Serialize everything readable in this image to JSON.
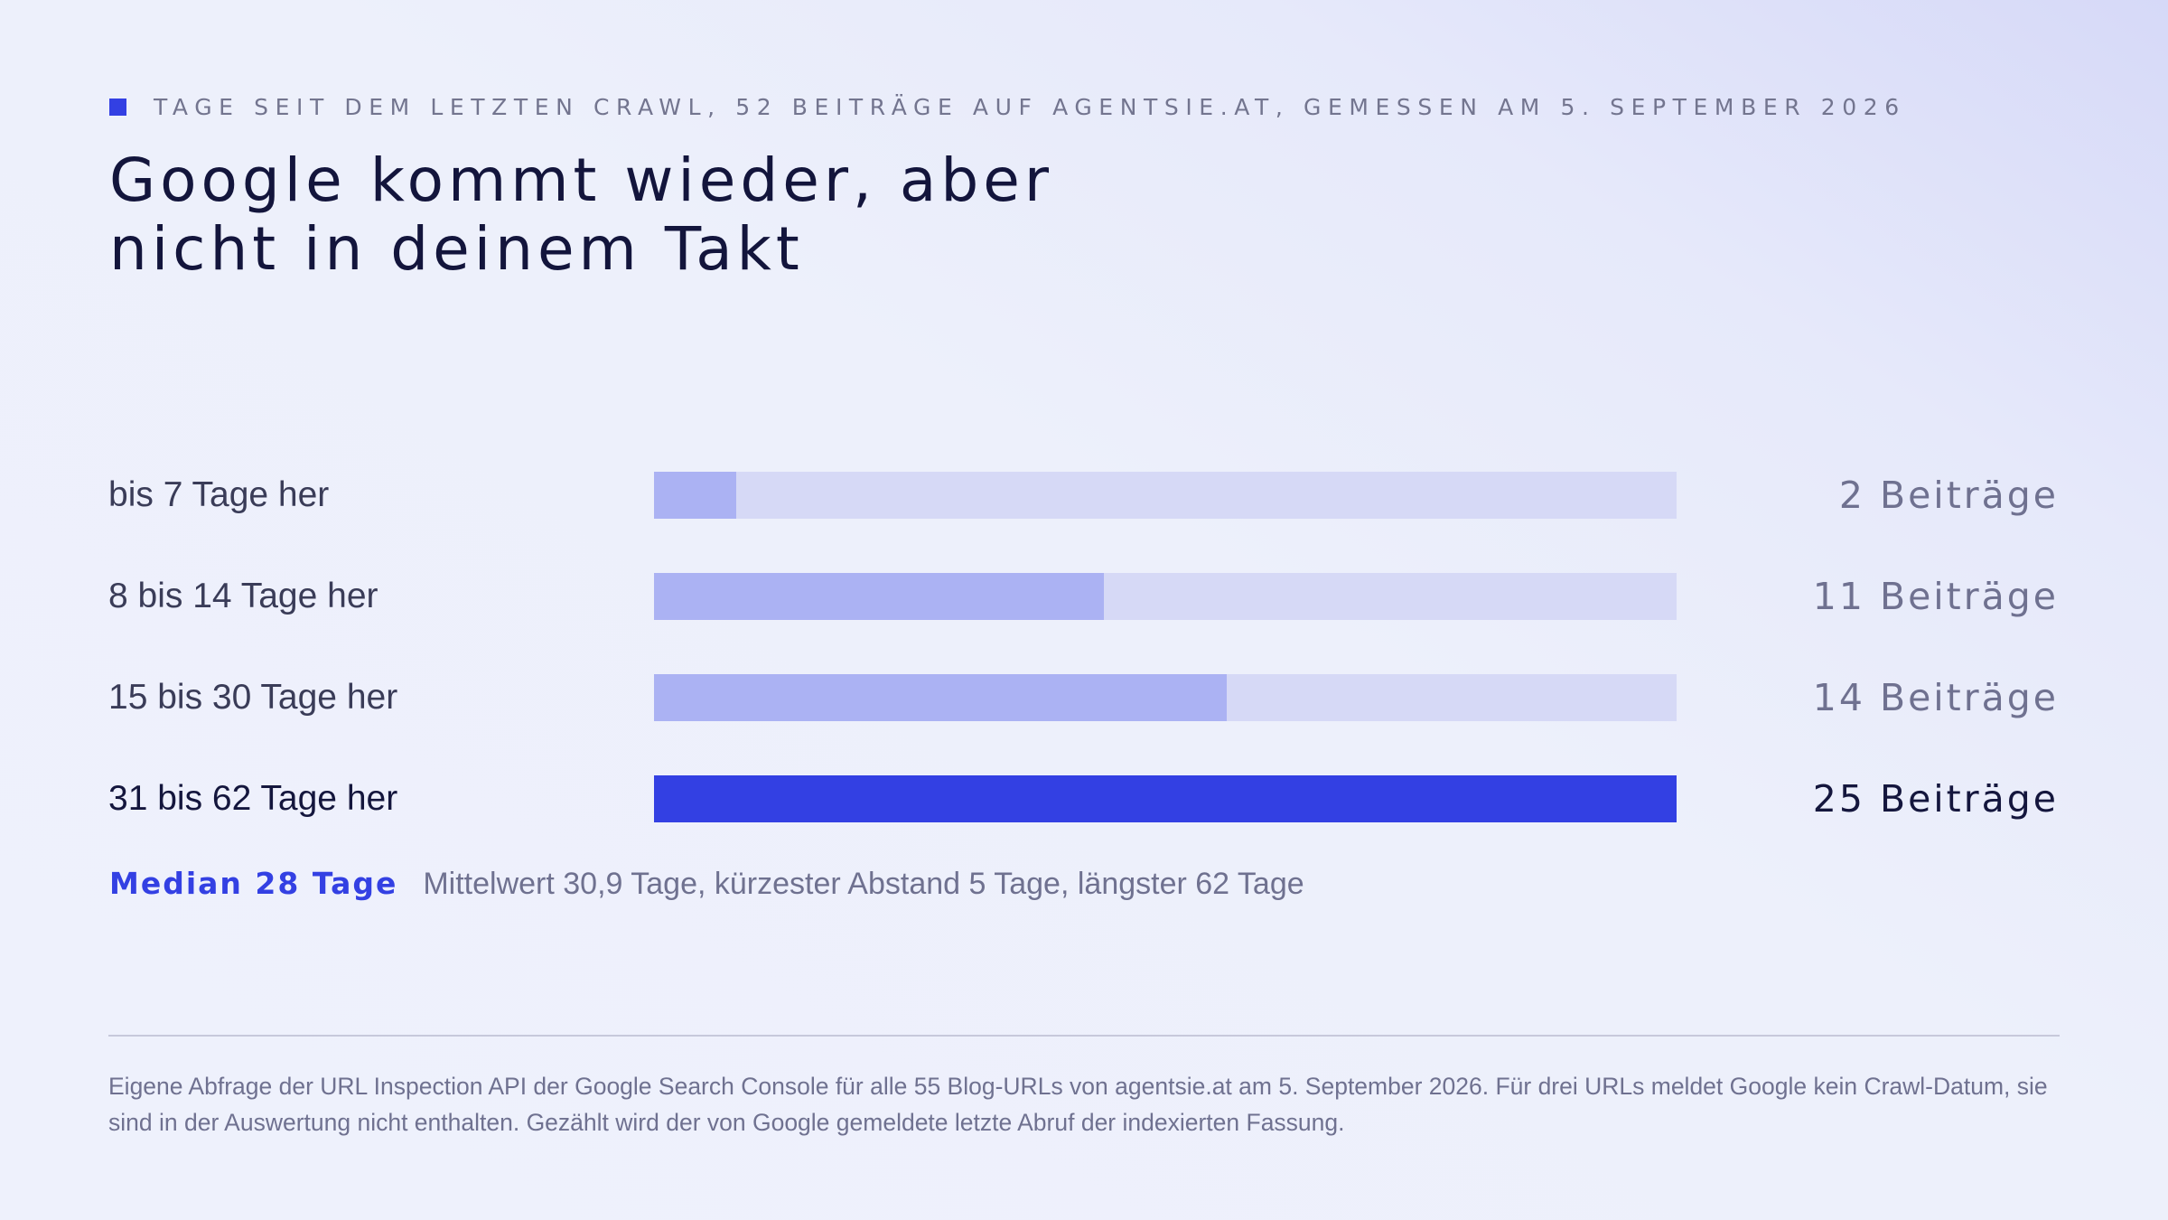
{
  "header": {
    "eyebrow": "TAGE SEIT DEM LETZTEN CRAWL, 52 BEITRÄGE AUF AGENTSIE.AT, GEMESSEN AM 5. SEPTEMBER 2026",
    "title_line1": "Google kommt wieder, aber",
    "title_line2": "nicht in deinem Takt"
  },
  "chart_data": {
    "type": "bar",
    "orientation": "horizontal",
    "categories": [
      "bis 7 Tage her",
      "8 bis 14 Tage her",
      "15 bis 30 Tage her",
      "31 bis 62 Tage her"
    ],
    "values": [
      2,
      11,
      14,
      25
    ],
    "value_labels": [
      "2 Beiträge",
      "11 Beiträge",
      "14 Beiträge",
      "25 Beiträge"
    ],
    "xlim": [
      0,
      25
    ],
    "highlight_index": 3,
    "colors": {
      "accent": "#3340e3",
      "bar": "#abb2f3",
      "track": "#d6d9f6"
    }
  },
  "stats": {
    "median": "Median 28 Tage",
    "details": "Mittelwert 30,9 Tage, kürzester Abstand 5 Tage, längster 62 Tage"
  },
  "footnote": "Eigene Abfrage der URL Inspection API der Google Search Console für alle 55 Blog-URLs von agentsie.at am 5. September 2026. Für drei URLs meldet Google kein Crawl-Datum, sie sind in der Auswertung nicht enthalten. Gezählt wird der von Google gemeldete letzte Abruf der indexierten Fassung."
}
